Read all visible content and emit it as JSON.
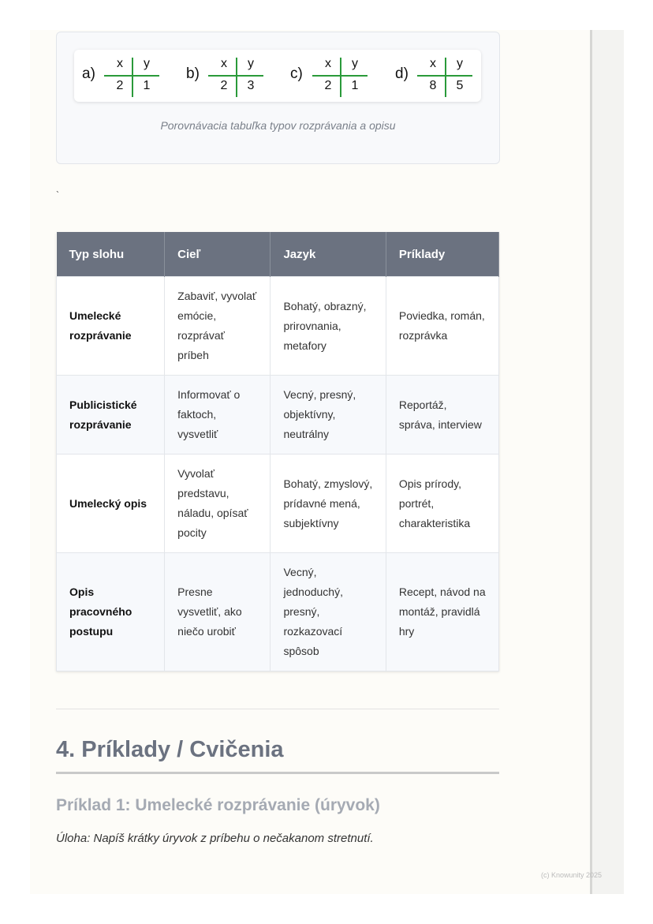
{
  "figure": {
    "tables": [
      {
        "label": "a)",
        "x": "x",
        "y": "y",
        "xv": "2",
        "yv": "1"
      },
      {
        "label": "b)",
        "x": "x",
        "y": "y",
        "xv": "2",
        "yv": "3"
      },
      {
        "label": "c)",
        "x": "x",
        "y": "y",
        "xv": "2",
        "yv": "1"
      },
      {
        "label": "d)",
        "x": "x",
        "y": "y",
        "xv": "8",
        "yv": "5"
      }
    ],
    "caption": "Porovnávacia tabuľka typov rozprávania a opisu",
    "line_color": "#2a9a3a"
  },
  "stray_mark": "`",
  "table": {
    "headers": [
      "Typ slohu",
      "Cieľ",
      "Jazyk",
      "Príklady"
    ],
    "rows": [
      [
        "Umelecké rozprávanie",
        "Zabaviť, vyvolať emócie, rozprávať príbeh",
        "Bohatý, obrazný, prirovnania, metafory",
        "Poviedka, román, rozprávka"
      ],
      [
        "Publicistické rozprávanie",
        "Informovať o faktoch, vysvetliť",
        "Vecný, presný, objektívny, neutrálny",
        "Reportáž, správa, interview"
      ],
      [
        "Umelecký opis",
        "Vyvolať predstavu, náladu, opísať pocity",
        "Bohatý, zmyslový, prídavné mená, subjektívny",
        "Opis prírody, portrét, charakteristika"
      ],
      [
        "Opis pracovného postupu",
        "Presne vysvetliť, ako niečo urobiť",
        "Vecný, jednoduchý, presný, rozkazovací spôsob",
        "Recept, návod na montáž, pravidlá hry"
      ]
    ],
    "header_color": "#6b7280"
  },
  "section": {
    "title": "4. Príklady / Cvičenia",
    "example_title": "Príklad 1: Umelecké rozprávanie (úryvok)",
    "task": "Úloha: Napíš krátky úryvok z príbehu o nečakanom stretnutí."
  },
  "footer": {
    "copyright": "(c) Knowunity 2025"
  }
}
